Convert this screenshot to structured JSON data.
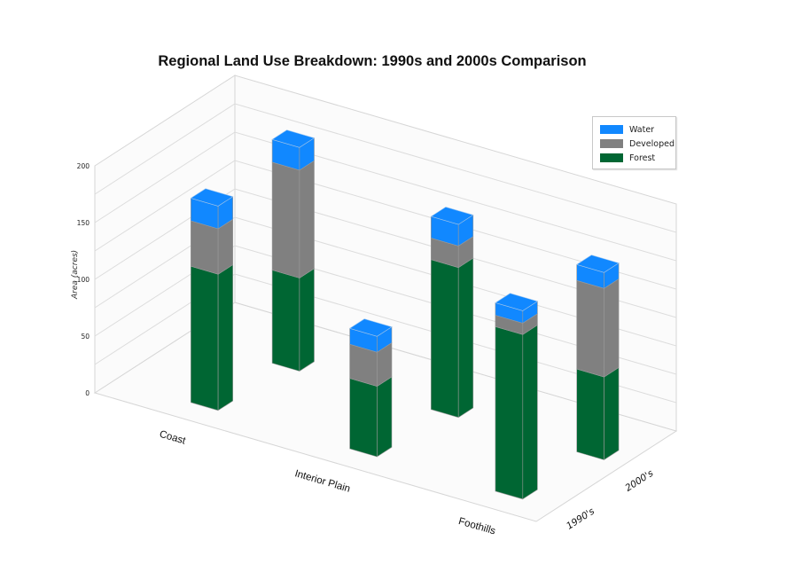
{
  "chart_data": {
    "type": "bar",
    "subtype": "3d-stacked-bar",
    "title": "Regional Land Use Breakdown: 1990s and 2000s Comparison",
    "xlabel": "",
    "ylabel": "Area (acres)",
    "zlabel": "",
    "ylim": [
      0,
      200
    ],
    "yticks": [
      0,
      50,
      100,
      150,
      200
    ],
    "categories": [
      "Coast",
      "Interior Plain",
      "Foothills"
    ],
    "depth_categories": [
      "1990's",
      "2000's"
    ],
    "stack_order": [
      "Forest",
      "Developed",
      "Water"
    ],
    "series": [
      {
        "name": "Forest",
        "color": "#006633",
        "values": {
          "1990's": [
            120,
            62,
            145
          ],
          "2000's": [
            82,
            132,
            73
          ]
        }
      },
      {
        "name": "Developed",
        "color": "#808080",
        "values": {
          "1990's": [
            40,
            30,
            10
          ],
          "2000's": [
            95,
            19,
            78
          ]
        }
      },
      {
        "name": "Water",
        "color": "#1188ff",
        "values": {
          "1990's": [
            20,
            14,
            11
          ],
          "2000's": [
            20,
            19,
            14
          ]
        }
      }
    ],
    "legend": {
      "position": "upper right",
      "entries": [
        "Water",
        "Developed",
        "Forest"
      ]
    },
    "grid": true
  }
}
